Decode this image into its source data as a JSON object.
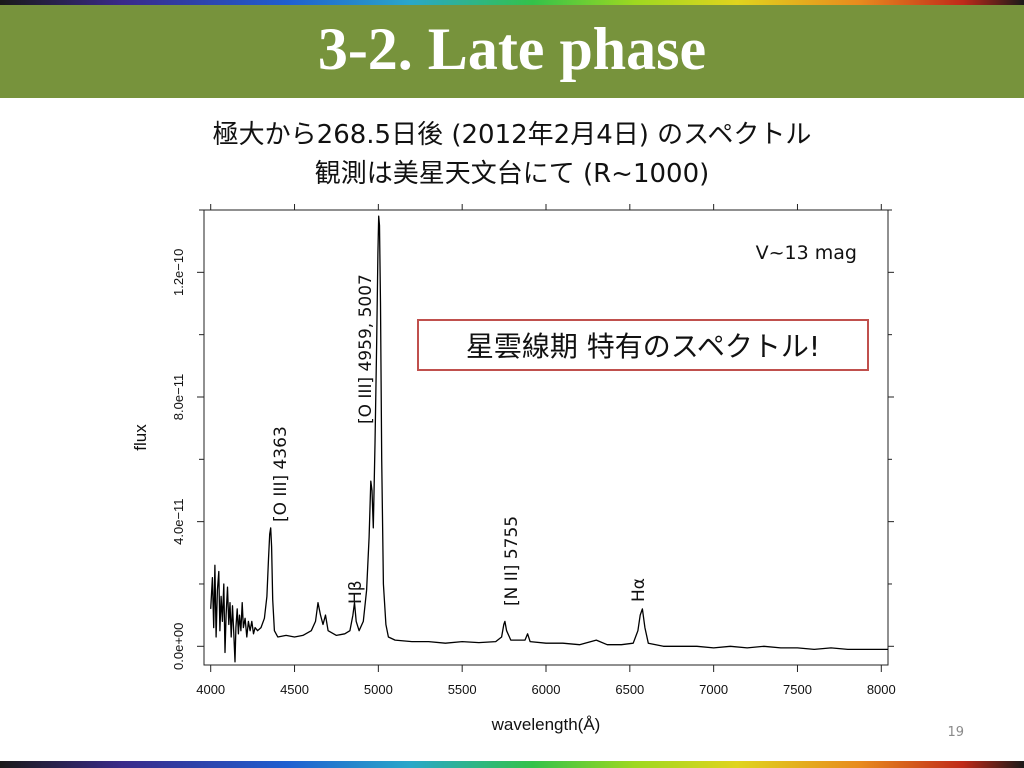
{
  "slide": {
    "title": "3-2. Late phase",
    "subtitle_line1": "極大から268.5日後 (2012年2月4日) のスペクトル",
    "subtitle_line2": "観測は美星天文台にて (R~1000)",
    "page_number": "19"
  },
  "colors": {
    "title_bar": "#77933c",
    "title_text": "#ffffff",
    "callout_border": "#c0504d",
    "spectrum_line": "#000000"
  },
  "chart_data": {
    "type": "line",
    "xlabel": "wavelength(Å)",
    "ylabel": "flux",
    "xlim": [
      3960,
      8040
    ],
    "ylim": [
      -6e-12,
      1.4e-10
    ],
    "x_ticks": [
      4000,
      4500,
      5000,
      5500,
      6000,
      6500,
      7000,
      7500,
      8000
    ],
    "x_tick_labels": [
      "4000",
      "4500",
      "5000",
      "5500",
      "6000",
      "6500",
      "7000",
      "7500",
      "8000"
    ],
    "y_ticks": [
      0,
      4e-11,
      8e-11,
      1.2e-10
    ],
    "y_tick_labels": [
      "0.0e+00",
      "4.0e−11",
      "8.0e−11",
      "1.2e−10"
    ],
    "grid": false,
    "series": [
      {
        "points": [
          [
            4000,
            1.2e-11
          ],
          [
            4010,
            2.2e-11
          ],
          [
            4018,
            6e-12
          ],
          [
            4025,
            2.6e-11
          ],
          [
            4032,
            3e-12
          ],
          [
            4040,
            1.8e-11
          ],
          [
            4048,
            2.4e-11
          ],
          [
            4055,
            5e-12
          ],
          [
            4062,
            1.6e-11
          ],
          [
            4070,
            8e-12
          ],
          [
            4078,
            2e-11
          ],
          [
            4085,
            -2e-12
          ],
          [
            4092,
            1e-11
          ],
          [
            4100,
            1.9e-11
          ],
          [
            4108,
            7e-12
          ],
          [
            4115,
            1.4e-11
          ],
          [
            4122,
            3e-12
          ],
          [
            4130,
            1.3e-11
          ],
          [
            4138,
            4e-12
          ],
          [
            4145,
            -5e-12
          ],
          [
            4150,
            6e-12
          ],
          [
            4158,
            1.2e-11
          ],
          [
            4165,
            4e-12
          ],
          [
            4172,
            1e-11
          ],
          [
            4180,
            5e-12
          ],
          [
            4188,
            1.4e-11
          ],
          [
            4195,
            6e-12
          ],
          [
            4205,
            9e-12
          ],
          [
            4215,
            3e-12
          ],
          [
            4225,
            8e-12
          ],
          [
            4235,
            5e-12
          ],
          [
            4245,
            8e-12
          ],
          [
            4255,
            4e-12
          ],
          [
            4265,
            6e-12
          ],
          [
            4280,
            5e-12
          ],
          [
            4300,
            6e-12
          ],
          [
            4320,
            9e-12
          ],
          [
            4335,
            1.6e-11
          ],
          [
            4345,
            2.8e-11
          ],
          [
            4352,
            3.6e-11
          ],
          [
            4358,
            3.8e-11
          ],
          [
            4363,
            3.2e-11
          ],
          [
            4370,
            1.5e-11
          ],
          [
            4380,
            5e-12
          ],
          [
            4400,
            3e-12
          ],
          [
            4450,
            3.5e-12
          ],
          [
            4500,
            3e-12
          ],
          [
            4550,
            3.5e-12
          ],
          [
            4600,
            5e-12
          ],
          [
            4625,
            8e-12
          ],
          [
            4640,
            1.4e-11
          ],
          [
            4655,
            1e-11
          ],
          [
            4670,
            7e-12
          ],
          [
            4685,
            1e-11
          ],
          [
            4700,
            5e-12
          ],
          [
            4750,
            3.5e-12
          ],
          [
            4800,
            4e-12
          ],
          [
            4830,
            5e-12
          ],
          [
            4848,
            1e-11
          ],
          [
            4858,
            1.4e-11
          ],
          [
            4868,
            8e-12
          ],
          [
            4885,
            5e-12
          ],
          [
            4910,
            8e-12
          ],
          [
            4930,
            1.8e-11
          ],
          [
            4945,
            3.5e-11
          ],
          [
            4955,
            5.3e-11
          ],
          [
            4962,
            5e-11
          ],
          [
            4970,
            3.8e-11
          ],
          [
            4980,
            6.5e-11
          ],
          [
            4990,
            9.8e-11
          ],
          [
            4997,
            1.26e-10
          ],
          [
            5002,
            1.38e-10
          ],
          [
            5007,
            1.35e-10
          ],
          [
            5013,
            1.1e-10
          ],
          [
            5020,
            6e-11
          ],
          [
            5030,
            2e-11
          ],
          [
            5045,
            7e-12
          ],
          [
            5060,
            3e-12
          ],
          [
            5100,
            2e-12
          ],
          [
            5200,
            1.5e-12
          ],
          [
            5300,
            1.5e-12
          ],
          [
            5400,
            1e-12
          ],
          [
            5500,
            1.5e-12
          ],
          [
            5600,
            1.2e-12
          ],
          [
            5700,
            1.5e-12
          ],
          [
            5735,
            3e-12
          ],
          [
            5748,
            7e-12
          ],
          [
            5755,
            8e-12
          ],
          [
            5765,
            5e-12
          ],
          [
            5790,
            2e-12
          ],
          [
            5875,
            2e-12
          ],
          [
            5890,
            4e-12
          ],
          [
            5905,
            1.5e-12
          ],
          [
            6000,
            1e-12
          ],
          [
            6100,
            1e-12
          ],
          [
            6200,
            5e-13
          ],
          [
            6300,
            2e-12
          ],
          [
            6365,
            5e-13
          ],
          [
            6450,
            5e-13
          ],
          [
            6520,
            1e-12
          ],
          [
            6548,
            5e-12
          ],
          [
            6562,
            1e-11
          ],
          [
            6575,
            1.2e-11
          ],
          [
            6590,
            6e-12
          ],
          [
            6610,
            1e-12
          ],
          [
            6700,
            0.0
          ],
          [
            6800,
            0.0
          ],
          [
            6900,
            0.0
          ],
          [
            7000,
            -5e-13
          ],
          [
            7100,
            0.0
          ],
          [
            7200,
            -5e-13
          ],
          [
            7300,
            0.0
          ],
          [
            7400,
            -5e-13
          ],
          [
            7500,
            -5e-13
          ],
          [
            7600,
            -1e-12
          ],
          [
            7700,
            -5e-13
          ],
          [
            7800,
            -1e-12
          ],
          [
            7900,
            -1e-12
          ],
          [
            8000,
            -1e-12
          ],
          [
            8040,
            -1e-12
          ]
        ]
      }
    ],
    "annotations": [
      {
        "text": "[O III] 4363"
      },
      {
        "text": "Hβ"
      },
      {
        "text": "[O III] 4959, 5007"
      },
      {
        "text": "[N II] 5755"
      },
      {
        "text": "Hα"
      },
      {
        "text": "V~13 mag"
      },
      {
        "text": "星雲線期 特有のスペクトル!"
      }
    ]
  }
}
